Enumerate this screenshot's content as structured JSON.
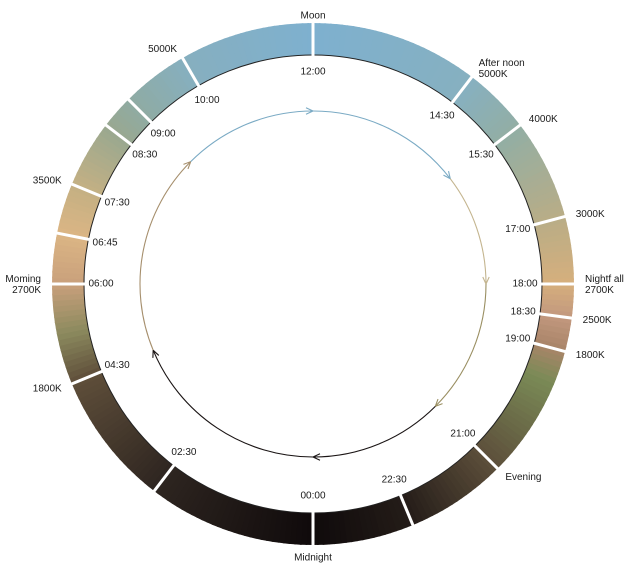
{
  "ring_colors": [
    {
      "time": "00:00",
      "color": "#0f0a0b"
    },
    {
      "time": "02:30",
      "color": "#2e2520"
    },
    {
      "time": "04:30",
      "color": "#5e4e3a"
    },
    {
      "time": "05:15",
      "color": "#8c8a5e"
    },
    {
      "time": "06:00",
      "color": "#c9a07c"
    },
    {
      "time": "06:45",
      "color": "#dbb584"
    },
    {
      "time": "07:30",
      "color": "#c4b083"
    },
    {
      "time": "08:30",
      "color": "#99a890"
    },
    {
      "time": "09:00",
      "color": "#8faba3"
    },
    {
      "time": "10:00",
      "color": "#86afbf"
    },
    {
      "time": "12:00",
      "color": "#7eb0cf"
    },
    {
      "time": "14:30",
      "color": "#86b0c0"
    },
    {
      "time": "15:30",
      "color": "#92aea4"
    },
    {
      "time": "17:00",
      "color": "#b9ad86"
    },
    {
      "time": "18:00",
      "color": "#d6af7d"
    },
    {
      "time": "18:30",
      "color": "#c2987e"
    },
    {
      "time": "19:00",
      "color": "#a88468"
    },
    {
      "time": "19:30",
      "color": "#7a8a56"
    },
    {
      "time": "21:00",
      "color": "#5d4f3b"
    },
    {
      "time": "22:30",
      "color": "#241c18"
    },
    {
      "time": "24:00",
      "color": "#0f0a0b"
    }
  ],
  "dividers": [
    "00:00",
    "02:30",
    "04:30",
    "06:00",
    "06:45",
    "07:30",
    "08:30",
    "09:00",
    "10:00",
    "12:00",
    "14:30",
    "15:30",
    "17:00",
    "18:00",
    "18:30",
    "19:00",
    "21:00",
    "22:30"
  ],
  "time_labels": [
    "12:00",
    "10:00",
    "09:00",
    "08:30",
    "07:30",
    "06:45",
    "06:00",
    "04:30",
    "02:30",
    "00:00",
    "22:30",
    "21:00",
    "19:00",
    "18:30",
    "18:00",
    "17:00",
    "15:30",
    "14:30"
  ],
  "outer_labels": [
    {
      "time": "12:00",
      "lines": [
        "Moon"
      ],
      "anchor": "middle"
    },
    {
      "time": "10:00",
      "lines": [
        "5000K"
      ],
      "anchor": "end"
    },
    {
      "time": "07:30",
      "lines": [
        "3500K"
      ],
      "anchor": "end"
    },
    {
      "time": "06:00",
      "lines": [
        "Moming",
        "2700K"
      ],
      "anchor": "end"
    },
    {
      "time": "04:30",
      "lines": [
        "1800K"
      ],
      "anchor": "end"
    },
    {
      "time": "00:00",
      "lines": [
        "Midnight"
      ],
      "anchor": "middle"
    },
    {
      "time": "21:00",
      "lines": [
        "Evening"
      ],
      "anchor": "start"
    },
    {
      "time": "19:00",
      "lines": [
        "1800K"
      ],
      "anchor": "start"
    },
    {
      "time": "18:30",
      "lines": [
        "2500K"
      ],
      "anchor": "start"
    },
    {
      "time": "18:00",
      "lines": [
        "Nightf all",
        "2700K"
      ],
      "anchor": "start"
    },
    {
      "time": "17:00",
      "lines": [
        "3000K"
      ],
      "anchor": "start"
    },
    {
      "time": "15:30",
      "lines": [
        "4000K"
      ],
      "anchor": "start"
    },
    {
      "time": "14:30",
      "lines": [
        "After noon",
        "5000K"
      ],
      "anchor": "start"
    }
  ],
  "arrow_segments": [
    {
      "from": "00:00",
      "to": "04:30",
      "color": "#1a1414"
    },
    {
      "from": "04:30",
      "to": "09:00",
      "color": "#a68f6d"
    },
    {
      "from": "09:00",
      "to": "12:00",
      "color": "#7aaac4"
    },
    {
      "from": "12:00",
      "to": "15:30",
      "color": "#7aaac4"
    },
    {
      "from": "15:30",
      "to": "18:00",
      "color": "#c4b58f"
    },
    {
      "from": "18:00",
      "to": "21:00",
      "color": "#9a8f62"
    },
    {
      "from": "21:00",
      "to": "24:00",
      "color": "#1a1414"
    }
  ]
}
